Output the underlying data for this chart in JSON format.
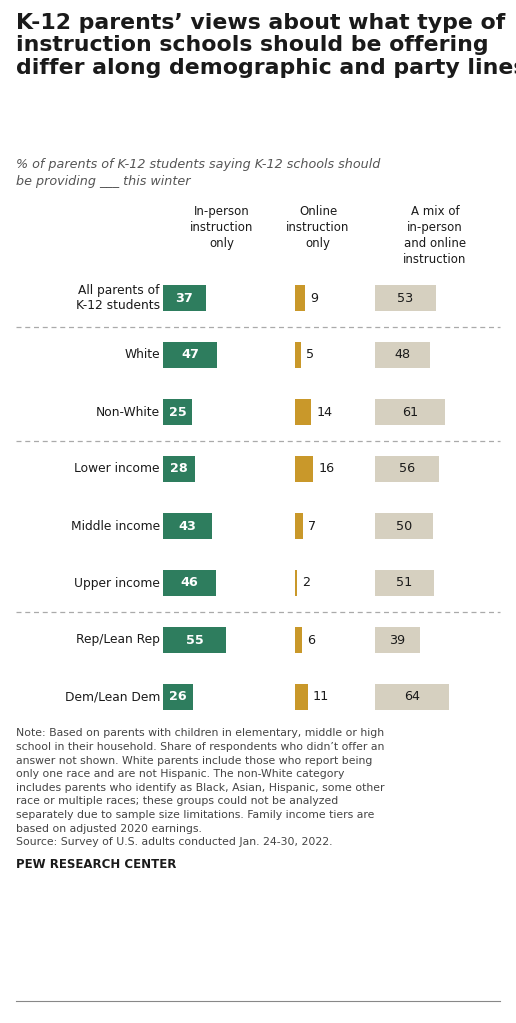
{
  "title": "K-12 parents’ views about what type of\ninstruction schools should be offering\ndiffer along demographic and party lines",
  "subtitle": "% of parents of K-12 students saying K-12 schools should\nbe providing ___ this winter",
  "col_headers": [
    "In-person\ninstruction\nonly",
    "Online\ninstruction\nonly",
    "A mix of\nin-person\nand online\ninstruction"
  ],
  "rows": [
    {
      "label": "All parents of\nK-12 students",
      "values": [
        37,
        9,
        53
      ],
      "group": "all"
    },
    {
      "label": "White",
      "values": [
        47,
        5,
        48
      ],
      "group": "race"
    },
    {
      "label": "Non-White",
      "values": [
        25,
        14,
        61
      ],
      "group": "race"
    },
    {
      "label": "Lower income",
      "values": [
        28,
        16,
        56
      ],
      "group": "income"
    },
    {
      "label": "Middle income",
      "values": [
        43,
        7,
        50
      ],
      "group": "income"
    },
    {
      "label": "Upper income",
      "values": [
        46,
        2,
        51
      ],
      "group": "income"
    },
    {
      "label": "Rep/Lean Rep",
      "values": [
        55,
        6,
        39
      ],
      "group": "party"
    },
    {
      "label": "Dem/Lean Dem",
      "values": [
        26,
        11,
        64
      ],
      "group": "party"
    }
  ],
  "dividers_after": [
    0,
    2,
    5
  ],
  "colors": [
    "#2e7d5e",
    "#c9982a",
    "#d6d0c0"
  ],
  "note_text": "Note: Based on parents with children in elementary, middle or high\nschool in their household. Share of respondents who didn’t offer an\nanswer not shown. White parents include those who report being\nonly one race and are not Hispanic. The non-White category\nincludes parents who identify as Black, Asian, Hispanic, some other\nrace or multiple races; these groups could not be analyzed\nseparately due to sample size limitations. Family income tiers are\nbased on adjusted 2020 earnings.\nSource: Survey of U.S. adults conducted Jan. 24-30, 2022.",
  "source_bold": "PEW RESEARCH CENTER",
  "bg_color": "#ffffff",
  "text_color": "#1a1a1a"
}
